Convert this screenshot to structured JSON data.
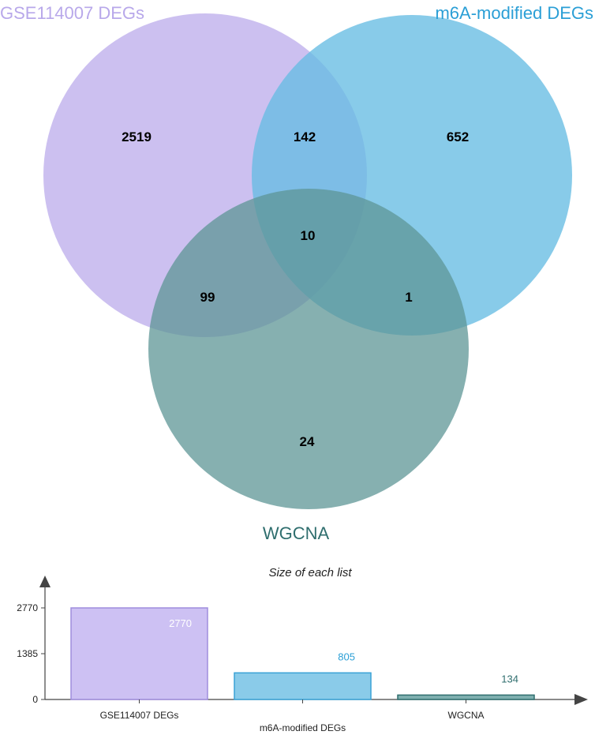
{
  "chart_data": [
    {
      "type": "venn",
      "sets": [
        {
          "name": "GSE114007 DEGs",
          "color": "#b8a8ea",
          "label_color": "#b8a8ea",
          "size": 2770
        },
        {
          "name": "m6A-modified DEGs",
          "color": "#67bce3",
          "label_color": "#2b9fd6",
          "size": 805
        },
        {
          "name": "WGCNA",
          "color": "#5d9696",
          "label_color": "#2f6e6e",
          "size": 134
        }
      ],
      "regions": [
        {
          "sets": [
            "GSE114007 DEGs"
          ],
          "count": "2519"
        },
        {
          "sets": [
            "GSE114007 DEGs",
            "m6A-modified DEGs"
          ],
          "count": "142"
        },
        {
          "sets": [
            "m6A-modified DEGs"
          ],
          "count": "652"
        },
        {
          "sets": [
            "GSE114007 DEGs",
            "m6A-modified DEGs",
            "WGCNA"
          ],
          "count": "10"
        },
        {
          "sets": [
            "GSE114007 DEGs",
            "WGCNA"
          ],
          "count": "99"
        },
        {
          "sets": [
            "m6A-modified DEGs",
            "WGCNA"
          ],
          "count": "1"
        },
        {
          "sets": [
            "WGCNA"
          ],
          "count": "24"
        }
      ]
    },
    {
      "type": "bar",
      "title": "Size of each list",
      "categories": [
        "GSE114007 DEGs",
        "m6A-modified DEGs",
        "WGCNA"
      ],
      "values": [
        2770,
        805,
        134
      ],
      "value_labels": [
        "2770",
        "805",
        "134"
      ],
      "value_label_colors": [
        "#ffffff",
        "#2b9fd6",
        "#2f6e6e"
      ],
      "colors": [
        "#cdc1f3",
        "#8acbe9",
        "#7fb0b0"
      ],
      "edge_colors": [
        "#9f8ddd",
        "#3aa2d6",
        "#2f6e6e"
      ],
      "yticks": [
        "0",
        "1385",
        "2770"
      ],
      "ylim": [
        0,
        2770
      ]
    }
  ]
}
